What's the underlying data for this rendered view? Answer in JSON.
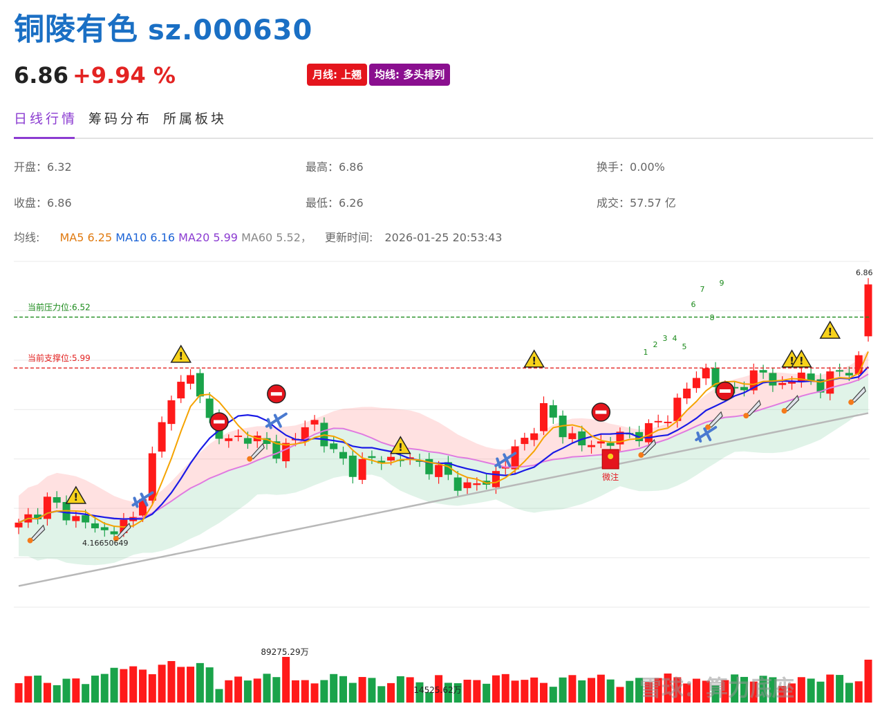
{
  "header": {
    "name": "铜陵有色",
    "code": "sz.000630",
    "price": "6.86",
    "change": "+9.94 %",
    "badges": [
      "月线: 上翘",
      "均线: 多头排列"
    ]
  },
  "tabs": [
    "日线行情",
    "筹码分布",
    "所属板块"
  ],
  "stats": {
    "open_label": "开盘：",
    "open": "6.32",
    "high_label": "最高：",
    "high": "6.86",
    "turnover_label": "换手：",
    "turnover": "0.00%",
    "close_label": "收盘：",
    "close": "6.86",
    "low_label": "最低：",
    "low": "6.26",
    "volume_label": "成交：",
    "volume": "57.57 亿"
  },
  "ma": {
    "label": "均线:",
    "ma5": "MA5 6.25",
    "ma10": "MA10 6.16",
    "ma20": "MA20 5.99",
    "ma60": "MA60 5.52，",
    "update_label": "更新时间:",
    "update_time": "2026-01-25 20:53:43"
  },
  "chart_data": {
    "type": "candlestick",
    "ylim": [
      3.5,
      7.1
    ],
    "resistance": {
      "label": "当前压力位:",
      "value": 6.52
    },
    "support": {
      "label": "当前支撑位:",
      "value": 5.99
    },
    "annotations": {
      "low_label": "4.16650649",
      "high_label": "6.86",
      "vol_max_label": "89275.29万",
      "vol_min_label": "14525.62万",
      "mark_label": "微注",
      "td_numbers": [
        "1",
        "2",
        "3",
        "4",
        "5",
        "6",
        "7",
        "8",
        "9"
      ]
    },
    "colors": {
      "up": "#ff1a1a",
      "down": "#1aa34a",
      "ma5": "#f5a300",
      "ma10": "#1a1ae6",
      "ma20": "#e07ae0",
      "ma60": "#b8b8b8",
      "resistance": "#1a8a1a",
      "support": "#e32322"
    },
    "watermark": "雪球：算力底座"
  }
}
